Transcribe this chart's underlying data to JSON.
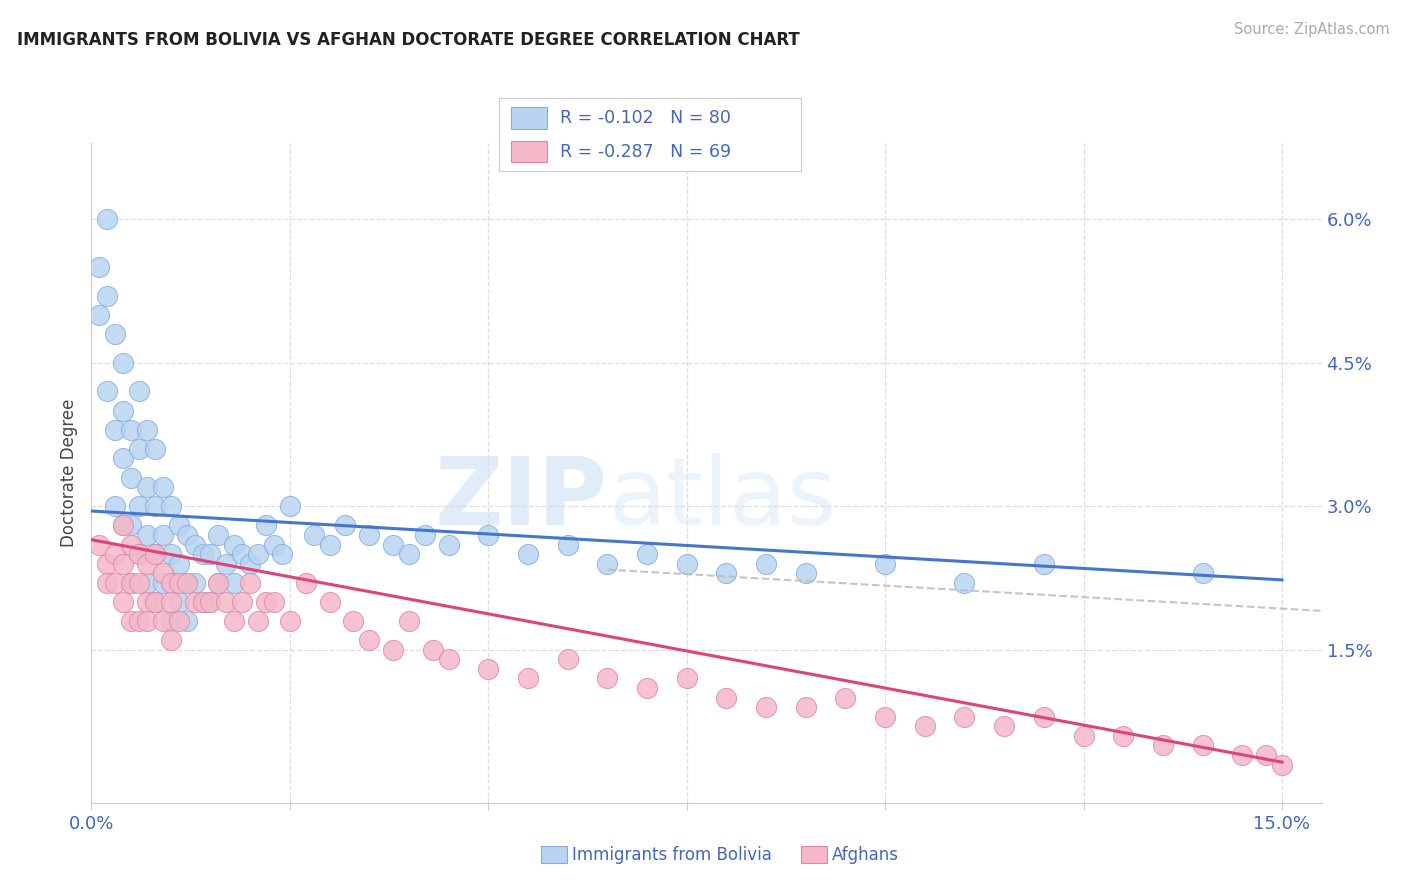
{
  "title": "IMMIGRANTS FROM BOLIVIA VS AFGHAN DOCTORATE DEGREE CORRELATION CHART",
  "source": "Source: ZipAtlas.com",
  "ylabel": "Doctorate Degree",
  "xlim": [
    0.0,
    0.155
  ],
  "ylim": [
    -0.001,
    0.068
  ],
  "bolivia_color": "#b8d4f0",
  "bolivia_edge": "#88aadd",
  "afghan_color": "#f5b8c8",
  "afghan_edge": "#dd88aa",
  "trend_bolivia_color": "#4477cc",
  "trend_afghan_color": "#dd4477",
  "trend_dashed_color": "#bbbbbb",
  "legend_text_color": "#4466bb",
  "tick_color": "#4466bb",
  "grid_color": "#dddddd",
  "background_color": "#ffffff",
  "watermark_zip": "ZIP",
  "watermark_atlas": "atlas",
  "bolivia_intercept": 0.0295,
  "bolivia_slope": -0.048,
  "afghan_intercept": 0.0265,
  "afghan_slope": -0.155,
  "dashed_intercept": 0.0265,
  "dashed_slope": -0.048
}
